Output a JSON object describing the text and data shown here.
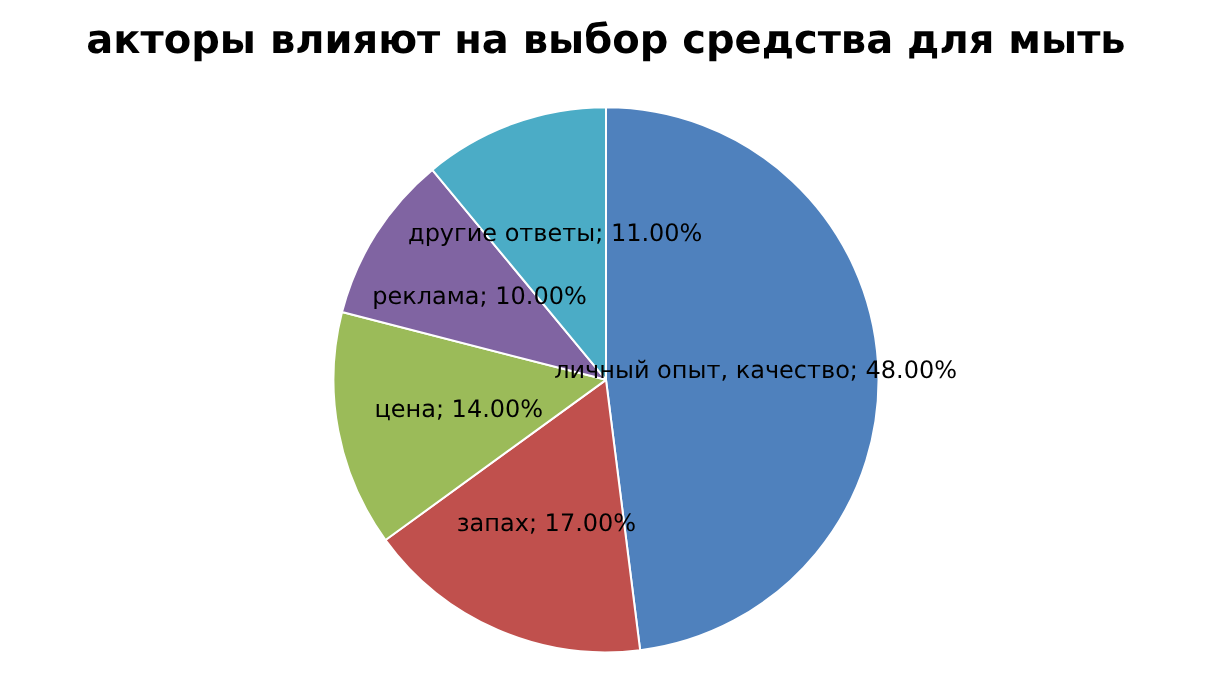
{
  "chart_data": {
    "type": "pie",
    "title": "акторы влияют на выбор средства для мыть",
    "categories": [
      "личный опыт, качество",
      "запах",
      "цена",
      "реклама",
      "другие ответы"
    ],
    "values": [
      48,
      17,
      14,
      10,
      11
    ],
    "colors": [
      "#4f81bd",
      "#c0504d",
      "#9bbb59",
      "#8064a2",
      "#4bacc6"
    ],
    "value_labels": [
      "48.00%",
      "17.00%",
      "14.00%",
      "10.00%",
      "11.00%"
    ]
  }
}
